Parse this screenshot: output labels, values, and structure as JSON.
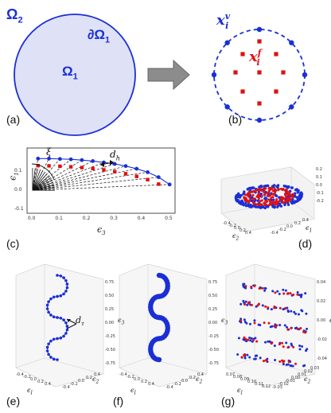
{
  "panels": {
    "a": {
      "label": "(a)",
      "domain_label": "Ω",
      "domain_sub": "1",
      "outer_label": "Ω",
      "outer_sub": "2",
      "boundary_label": "∂Ω",
      "boundary_sub": "1"
    },
    "b": {
      "label": "(b)",
      "vertex_symbol": "x",
      "vertex_sup": "v",
      "vertex_sub": "i",
      "face_symbol": "x",
      "face_sup": "f",
      "face_sub": "i"
    },
    "c": {
      "label": "(c)",
      "angle_label": "ξ",
      "spacing_label": "d",
      "spacing_sub": "h",
      "xlabel": "ϵ",
      "xlabel_sub": "3",
      "ylabel": "ϵ",
      "ylabel_sub": "1",
      "xticks": [
        "0.0",
        "0.1",
        "0.2",
        "0.3",
        "0.4",
        "0.5"
      ],
      "yticks": [
        "-0.1",
        "0.0",
        "0.1"
      ]
    },
    "d": {
      "label": "(d)",
      "xlabel": "ϵ",
      "xlabel_sub": "2",
      "ylabel": "ϵ",
      "ylabel_sub": "1",
      "xticks": [
        "-0.4",
        "-0.2",
        "0.0",
        "0.2",
        "0.4"
      ],
      "yticks": [
        "-0.4",
        "-0.2",
        "0.0",
        "0.2",
        "0.4"
      ],
      "zticks": [
        "0.2",
        "0.1",
        "0.0",
        "-0.1",
        "-0.2"
      ]
    },
    "e": {
      "label": "(e)",
      "spacing_label": "d",
      "spacing_sub": "τ",
      "xlabel": "ϵ",
      "xlabel_sub": "I",
      "ylabel": "ϵ",
      "ylabel_sub": "2",
      "zlabel": "ϵ",
      "zlabel_sub": "3",
      "xticks": [
        "-0.4",
        "-0.2",
        "0.0",
        "0.2",
        "0.4"
      ],
      "yticks": [
        "-0.4",
        "-0.2",
        "0.0",
        "0.2",
        "0.4"
      ],
      "zticks": [
        "0.75",
        "0.50",
        "0.25",
        "0.00",
        "-0.25",
        "-0.50",
        "-0.75"
      ]
    },
    "f": {
      "label": "(f)",
      "xlabel": "ϵ",
      "xlabel_sub": "I",
      "ylabel": "ϵ",
      "ylabel_sub": "2",
      "zlabel": "ϵ",
      "zlabel_sub": "3",
      "xticks": [
        "-0.4",
        "-0.2",
        "0.0",
        "0.2",
        "0.4"
      ],
      "yticks": [
        "-0.4",
        "-0.2",
        "0.0",
        "0.2",
        "0.4"
      ],
      "zticks": [
        "0.75",
        "0.50",
        "0.25",
        "0.00",
        "-0.25",
        "-0.50",
        "-0.75"
      ]
    },
    "g": {
      "label": "(g)",
      "xlabel": "ϵ",
      "xlabel_sub": "I",
      "ylabel": "ϵ",
      "ylabel_sub": "2",
      "zlabel": "ϵ",
      "zlabel_sub": "3",
      "xticks": [
        "0.07",
        "0.08",
        "0.09",
        "0.10",
        "0.11",
        "0.12"
      ],
      "yticks": [
        "-0.03",
        "-0.02",
        "-0.01",
        "0.00",
        "0.01",
        "0.02",
        "0.03"
      ],
      "zticks": [
        "0.04",
        "0.02",
        "0.00",
        "-0.02",
        "-0.04"
      ]
    }
  },
  "colors": {
    "blue": "#1a2fd6",
    "red": "#e01010",
    "fill": "#dfe1f7",
    "arrow": "#808080"
  },
  "chart_data": [
    {
      "type": "scatter",
      "panel": "c",
      "series": [
        {
          "name": "",
          "color": "blue",
          "x": [
            0.02,
            0.06,
            0.1,
            0.14,
            0.18,
            0.22,
            0.26,
            0.3,
            0.34,
            0.38,
            0.42,
            0.46,
            0.5
          ],
          "y": [
            0.165,
            0.165,
            0.163,
            0.161,
            0.157,
            0.152,
            0.145,
            0.137,
            0.126,
            0.112,
            0.094,
            0.068,
            0.03
          ]
        },
        {
          "name": "",
          "color": "red",
          "x": [
            0.02,
            0.06,
            0.1,
            0.14,
            0.18,
            0.22,
            0.26,
            0.3,
            0.34,
            0.38,
            0.42,
            0.46
          ],
          "y": [
            0.128,
            0.127,
            0.125,
            0.122,
            0.118,
            0.113,
            0.106,
            0.097,
            0.086,
            0.072,
            0.055,
            0.032
          ]
        }
      ],
      "xlim": [
        -0.02,
        0.52
      ],
      "ylim": [
        -0.12,
        0.22
      ]
    }
  ]
}
